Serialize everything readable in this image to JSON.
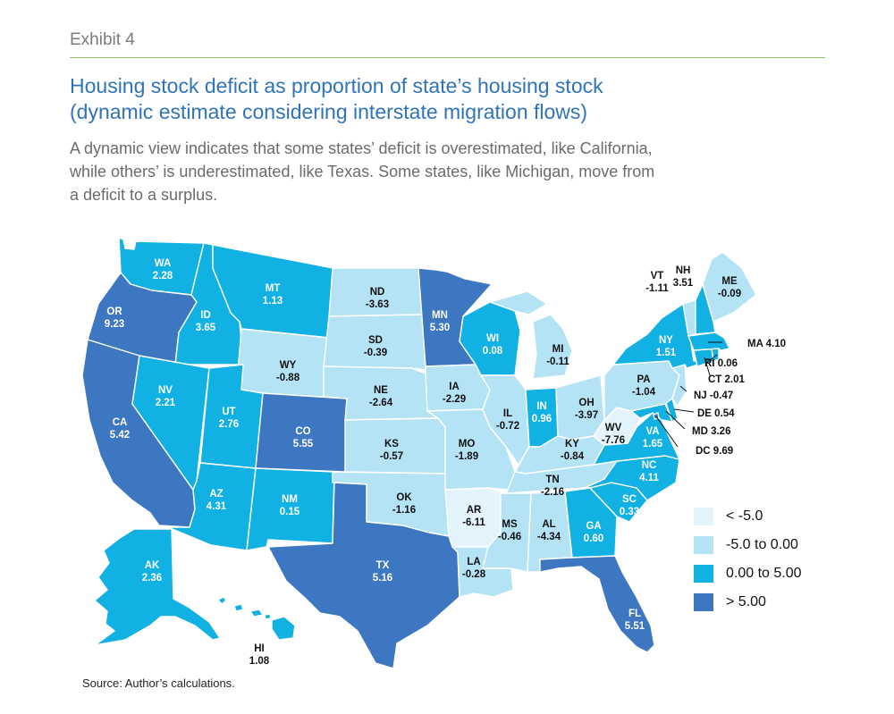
{
  "header": {
    "exhibit": "Exhibit 4",
    "title_line1": "Housing stock deficit as proportion of state’s housing stock",
    "title_line2": "(dynamic estimate considering interstate migration flows)",
    "subtitle_line1": "A dynamic view indicates that some states’ deficit is overestimated, like California,",
    "subtitle_line2": "while others’ is underestimated, like Texas. Some states, like Michigan, move from",
    "subtitle_line3": "a deficit to a surplus."
  },
  "source": "Source: Author’s calculations.",
  "colors": {
    "lt_neg5": "#e3f4fc",
    "neg5_to_0": "#b5e3f6",
    "zero_to_5": "#12b1e3",
    "gt_5": "#3e77c1",
    "label_dark": "#111111",
    "label_light": "#ffffff"
  },
  "legend": [
    {
      "label": "< -5.0",
      "color": "#e3f4fc"
    },
    {
      "label": "-5.0 to 0.00",
      "color": "#b5e3f6"
    },
    {
      "label": "0.00 to 5.00",
      "color": "#12b1e3"
    },
    {
      "label": "> 5.00",
      "color": "#3e77c1"
    }
  ],
  "states": {
    "WA": {
      "abbr": "WA",
      "value": "2.28"
    },
    "OR": {
      "abbr": "OR",
      "value": "9.23"
    },
    "CA": {
      "abbr": "CA",
      "value": "5.42"
    },
    "ID": {
      "abbr": "ID",
      "value": "3.65"
    },
    "NV": {
      "abbr": "NV",
      "value": "2.21"
    },
    "MT": {
      "abbr": "MT",
      "value": "1.13"
    },
    "WY": {
      "abbr": "WY",
      "value": "-0.88"
    },
    "UT": {
      "abbr": "UT",
      "value": "2.76"
    },
    "AZ": {
      "abbr": "AZ",
      "value": "4.31"
    },
    "CO": {
      "abbr": "CO",
      "value": "5.55"
    },
    "NM": {
      "abbr": "NM",
      "value": "0.15"
    },
    "ND": {
      "abbr": "ND",
      "value": "-3.63"
    },
    "SD": {
      "abbr": "SD",
      "value": "-0.39"
    },
    "NE": {
      "abbr": "NE",
      "value": "-2.64"
    },
    "KS": {
      "abbr": "KS",
      "value": "-0.57"
    },
    "OK": {
      "abbr": "OK",
      "value": "-1.16"
    },
    "TX": {
      "abbr": "TX",
      "value": "5.16"
    },
    "MN": {
      "abbr": "MN",
      "value": "5.30"
    },
    "IA": {
      "abbr": "IA",
      "value": "-2.29"
    },
    "MO": {
      "abbr": "MO",
      "value": "-1.89"
    },
    "AR": {
      "abbr": "AR",
      "value": "-6.11"
    },
    "LA": {
      "abbr": "LA",
      "value": "-0.28"
    },
    "WI": {
      "abbr": "WI",
      "value": "0.08"
    },
    "IL": {
      "abbr": "IL",
      "value": "-0.72"
    },
    "MI": {
      "abbr": "MI",
      "value": "-0.11"
    },
    "IN": {
      "abbr": "IN",
      "value": "0.96"
    },
    "OH": {
      "abbr": "OH",
      "value": "-3.97"
    },
    "KY": {
      "abbr": "KY",
      "value": "-0.84"
    },
    "TN": {
      "abbr": "TN",
      "value": "-2.16"
    },
    "MS": {
      "abbr": "MS",
      "value": "-0.46"
    },
    "AL": {
      "abbr": "AL",
      "value": "-4.34"
    },
    "GA": {
      "abbr": "GA",
      "value": "0.60"
    },
    "FL": {
      "abbr": "FL",
      "value": "5.51"
    },
    "SC": {
      "abbr": "SC",
      "value": "0.33"
    },
    "NC": {
      "abbr": "NC",
      "value": "4.11"
    },
    "VA": {
      "abbr": "VA",
      "value": "1.65"
    },
    "WV": {
      "abbr": "WV",
      "value": "-7.76"
    },
    "PA": {
      "abbr": "PA",
      "value": "-1.04"
    },
    "NY": {
      "abbr": "NY",
      "value": "1.51"
    },
    "VT": {
      "abbr": "VT",
      "value": "-1.11"
    },
    "NH": {
      "abbr": "NH",
      "value": "3.51"
    },
    "ME": {
      "abbr": "ME",
      "value": "-0.09"
    },
    "MA": {
      "abbr": "MA",
      "value": "4.10"
    },
    "RI": {
      "abbr": "RI",
      "value": "0.06"
    },
    "CT": {
      "abbr": "CT",
      "value": "2.01"
    },
    "NJ": {
      "abbr": "NJ",
      "value": "-0.47"
    },
    "DE": {
      "abbr": "DE",
      "value": "0.54"
    },
    "MD": {
      "abbr": "MD",
      "value": "3.26"
    },
    "DC": {
      "abbr": "DC",
      "value": "9.69"
    },
    "AK": {
      "abbr": "AK",
      "value": "2.36"
    },
    "HI": {
      "abbr": "HI",
      "value": "1.08"
    }
  }
}
